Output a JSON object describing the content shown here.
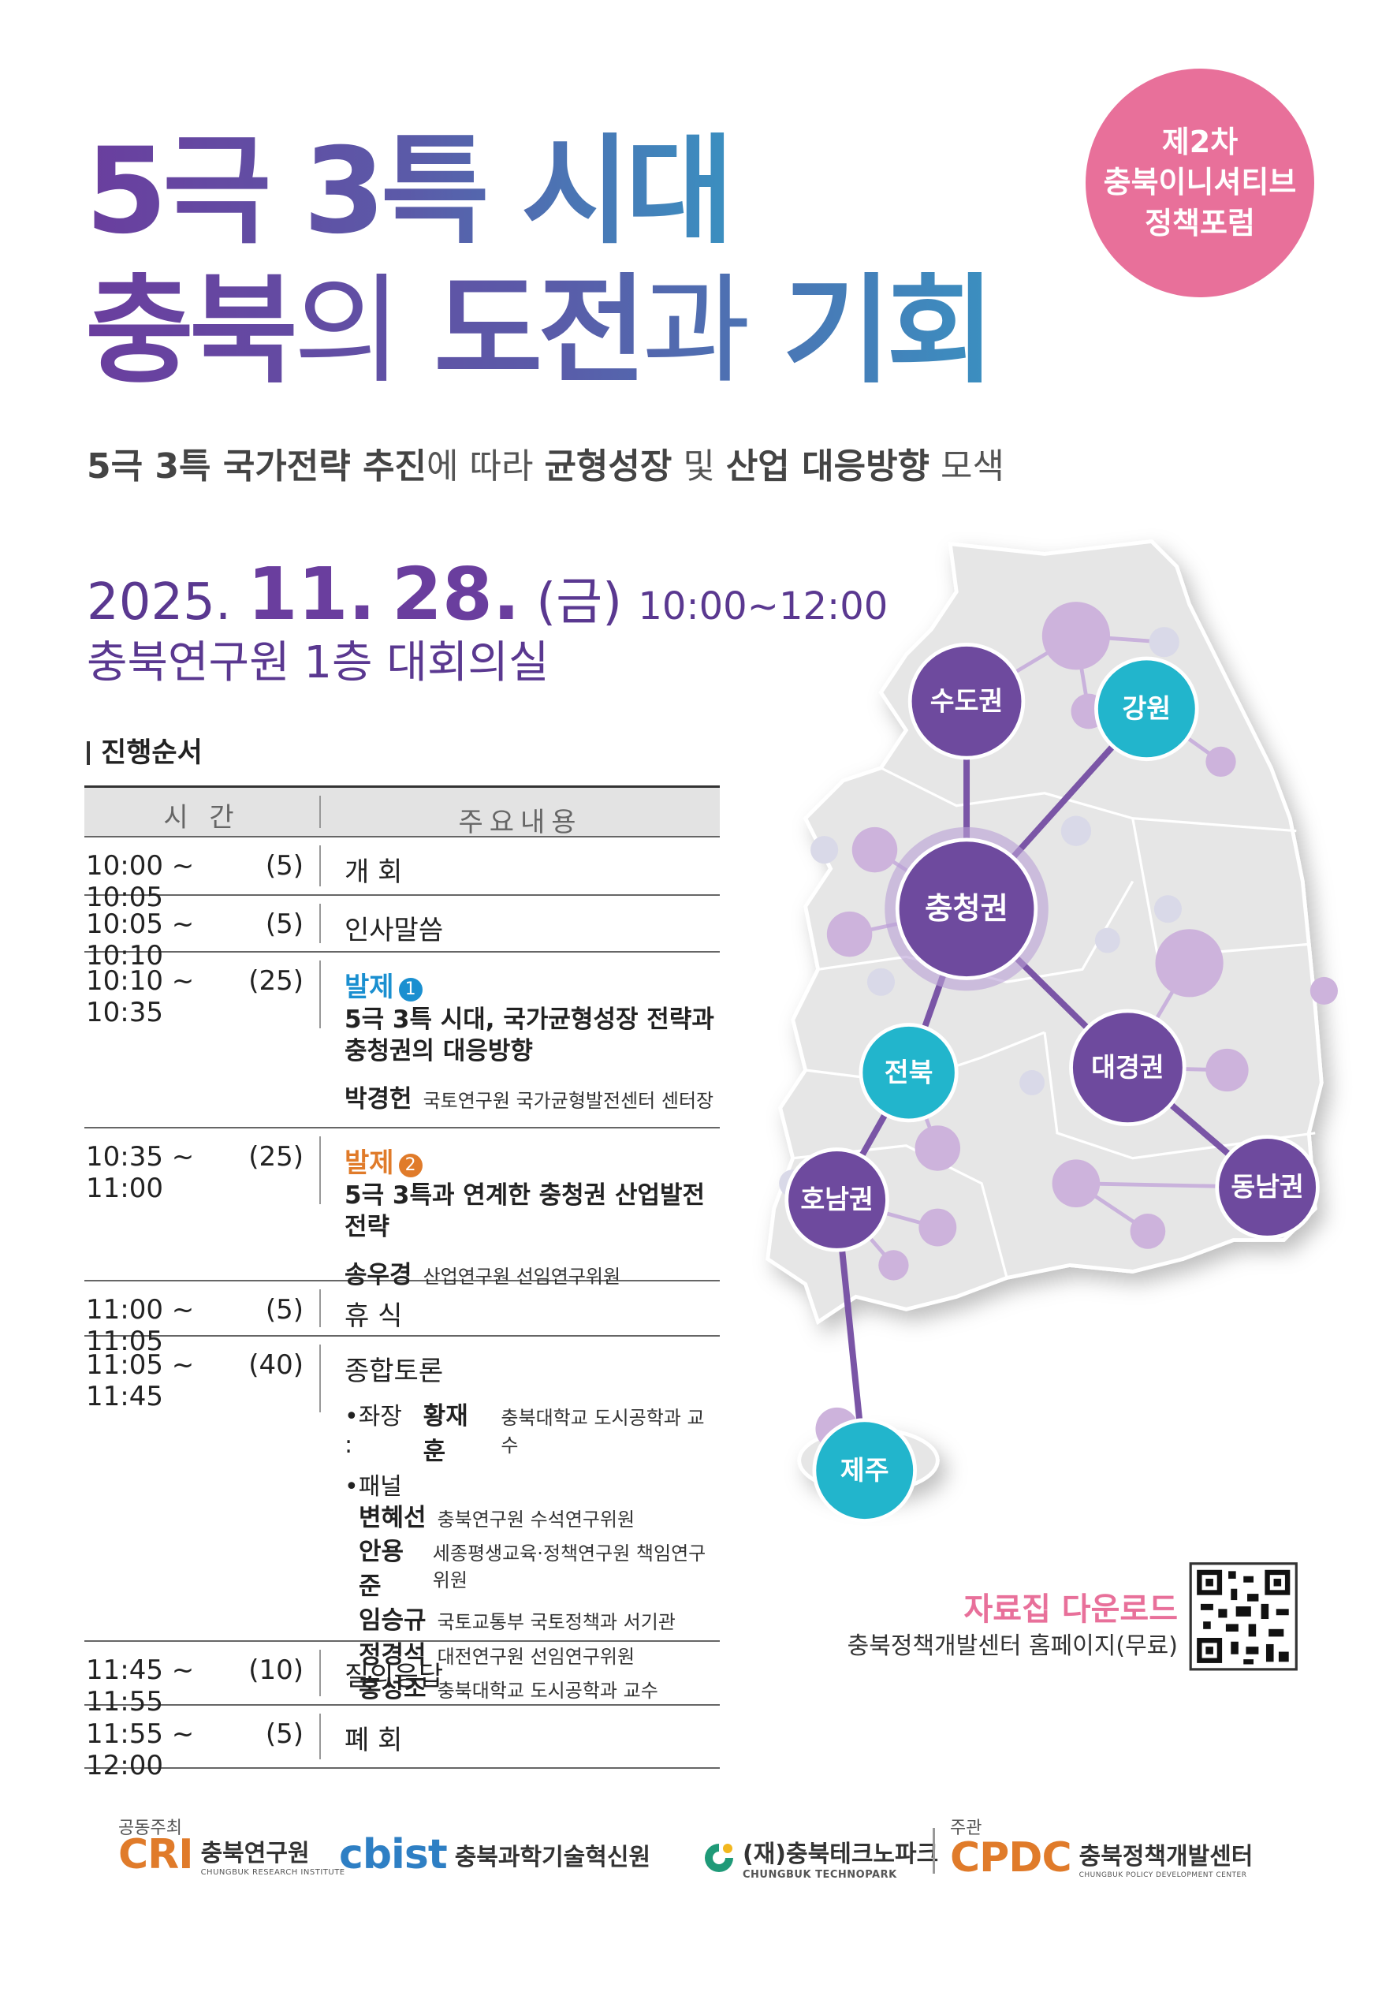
{
  "badge": {
    "lines": [
      "제2차",
      "충북이니셔티브",
      "정책포럼"
    ]
  },
  "title": {
    "line1": "5극 3특 시대",
    "line2": [
      "충북",
      "의",
      "도전",
      "과",
      "기회"
    ]
  },
  "subtitle": [
    "5극 3특 국가전략 추진",
    "에 따라 ",
    "균형성장",
    " 및 ",
    "산업 대응방향",
    " 모색"
  ],
  "event": {
    "year": "2025.",
    "month": "11.",
    "day": "28.",
    "weekday": "(금)",
    "time": "10:00~12:00",
    "venue": "충북연구원 1층 대회의실"
  },
  "program": {
    "heading": "진행순서",
    "header": [
      "시 간",
      "주요내용"
    ],
    "rows": [
      {
        "time": "10:00 ~ 10:05",
        "duration": "(5)",
        "content": "개 회"
      },
      {
        "time": "10:05 ~ 10:10",
        "duration": "(5)",
        "content": "인사말씀"
      },
      {
        "time": "10:10 ~ 10:35",
        "duration": "(25)",
        "label": "발제",
        "number": "1",
        "topic": [
          "5극 3특 시대, 국가균형성장 전략과",
          "충청권의 대응방향"
        ],
        "speaker": "박경헌",
        "affiliation": "국토연구원 국가균형발전센터 센터장"
      },
      {
        "time": "10:35 ~ 11:00",
        "duration": "(25)",
        "label": "발제",
        "number": "2",
        "topic": [
          "5극 3특과 연계한 충청권 산업발전전략"
        ],
        "speaker": "송우경",
        "affiliation": "산업연구원 선임연구위원"
      },
      {
        "time": "11:00 ~ 11:05",
        "duration": "(5)",
        "content": "휴 식"
      },
      {
        "time": "11:05 ~ 11:45",
        "duration": "(40)",
        "content": "종합토론",
        "chair_label": "•좌장 :",
        "chair": "황재훈",
        "chair_affiliation": "충북대학교 도시공학과 교수",
        "panel_label": "•패널",
        "panel": [
          {
            "name": "변혜선",
            "affiliation": "충북연구원 수석연구위원"
          },
          {
            "name": "안용준",
            "affiliation": "세종평생교육·정책연구원 책임연구위원"
          },
          {
            "name": "임승규",
            "affiliation": "국토교통부 국토정책과 서기관"
          },
          {
            "name": "정경석",
            "affiliation": "대전연구원 선임연구위원"
          },
          {
            "name": "홍성조",
            "affiliation": "충북대학교 도시공학과 교수"
          }
        ]
      },
      {
        "time": "11:45 ~ 11:55",
        "duration": "(10)",
        "content": "질의응답"
      },
      {
        "time": "11:55 ~ 12:00",
        "duration": "(5)",
        "content": "폐 회"
      }
    ]
  },
  "map": {
    "nodes": [
      "수도권",
      "강원",
      "충청권",
      "전북",
      "대경권",
      "호남권",
      "동남권",
      "제주"
    ]
  },
  "download": {
    "title": "자료집 다운로드",
    "note": "충북정책개발센터 홈페이지(무료)"
  },
  "footer": {
    "cohost_label": "공동주최",
    "host_label": "주관",
    "orgs": [
      {
        "logo": "CRI",
        "name": "충북연구원",
        "english": "CHUNGBUK RESEARCH INSTITUTE"
      },
      {
        "logo": "cbist",
        "name": "충북과학기술혁신원"
      },
      {
        "name": "(재)충북테크노파크",
        "english": "CHUNGBUK TECHNOPARK"
      },
      {
        "logo": "CPDC",
        "name": "충북정책개발센터",
        "english": "CHUNGBUK POLICY DEVELOPMENT CENTER"
      }
    ]
  }
}
